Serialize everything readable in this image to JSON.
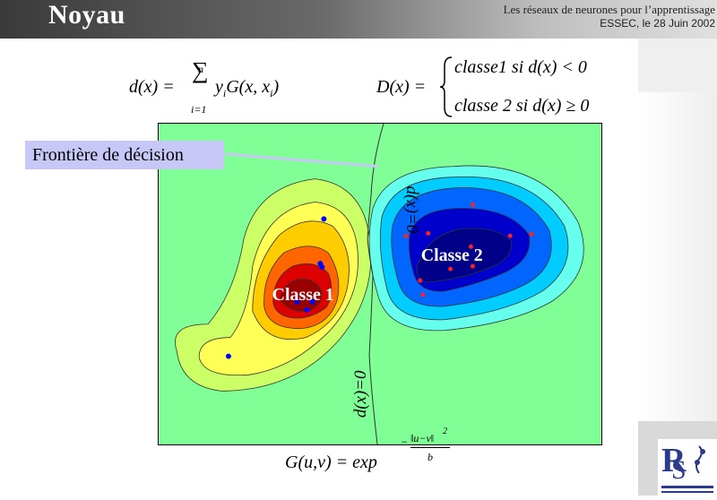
{
  "header": {
    "title": "Noyau",
    "subtitle_line1": "Les réseaux de neurones pour  l’apprentissage",
    "subtitle_line2": "ESSEC, le 28 Juin 2002"
  },
  "formula_d": {
    "lhs": "d(x) = ",
    "sum_upper": "n",
    "sum_lower": "i=1",
    "sum_symbol": "∑",
    "body": "y",
    "body_sub": "i",
    "body2": "G(x, x",
    "body2_sub": "i",
    "body2_end": ")"
  },
  "formula_D": {
    "lhs": "D(x) = ",
    "case1": "classe1 si d(x) < 0",
    "case2": "classe 2 si d(x) ≥ 0"
  },
  "plot": {
    "label": "Frontière de décision",
    "class1": "Classe 1",
    "class2": "Classe 2",
    "boundary_top": "d(x)=0",
    "boundary_bottom": "d(x)=0"
  },
  "bottom_formula": {
    "lhs": "G(u,v) = exp",
    "exponent_num": "‖u−v‖",
    "exponent_pow": "2",
    "exponent_den": "b",
    "exponent_sign": "−"
  },
  "colors": {
    "background_field": "#80ff96",
    "level1": "#ccff66",
    "level2": "#ffff55",
    "level3": "#ffcc00",
    "level4": "#ff6600",
    "level5": "#dd0000",
    "level6": "#990000",
    "blue1": "#66ffee",
    "blue2": "#00ccff",
    "blue3": "#0066ff",
    "blue4": "#0000cc",
    "blue5": "#000088",
    "label_box": "#c8c8f8"
  }
}
